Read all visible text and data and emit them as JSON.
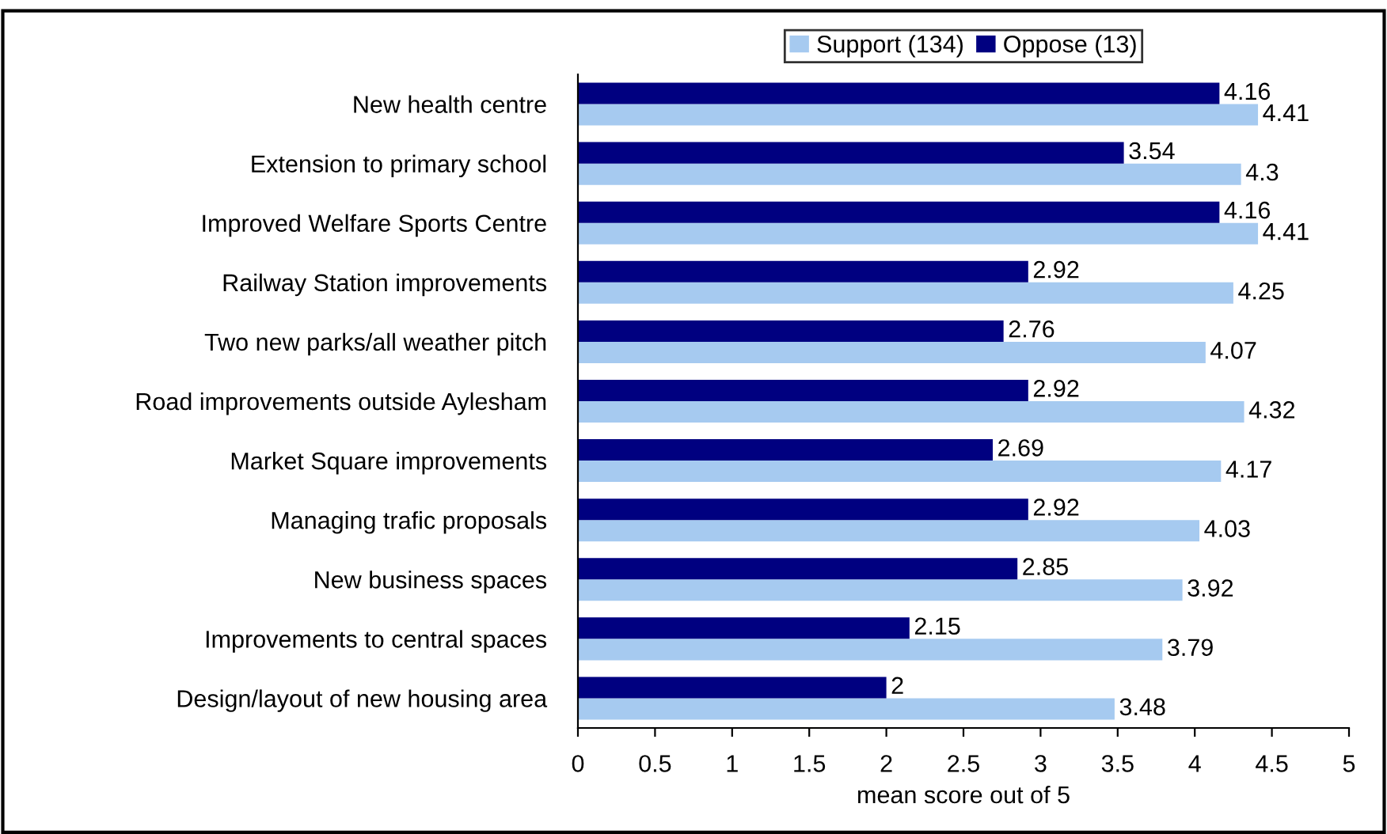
{
  "chart_data": {
    "type": "bar",
    "orientation": "horizontal",
    "xlabel": "mean score out of 5",
    "categories": [
      "New health centre",
      "Extension to primary school",
      "Improved Welfare Sports Centre",
      "Railway Station improvements",
      "Two new parks/all weather pitch",
      "Road improvements outside Aylesham",
      "Market Square improvements",
      "Managing trafic proposals",
      "New business spaces",
      "Improvements to central spaces",
      "Design/layout of new housing area"
    ],
    "series": [
      {
        "name": "Support (134)",
        "color": "#a6caf0",
        "values": [
          4.41,
          4.3,
          4.41,
          4.25,
          4.07,
          4.32,
          4.17,
          4.03,
          3.92,
          3.79,
          3.48
        ]
      },
      {
        "name": "Oppose (13)",
        "color": "#000080",
        "values": [
          4.16,
          3.54,
          4.16,
          2.92,
          2.76,
          2.92,
          2.69,
          2.92,
          2.85,
          2.15,
          2
        ]
      }
    ],
    "xlim": [
      0,
      5
    ],
    "xticks": [
      0,
      0.5,
      1,
      1.5,
      2,
      2.5,
      3,
      3.5,
      4,
      4.5,
      5
    ],
    "data_labels": true,
    "legend": "top",
    "grid": false
  }
}
